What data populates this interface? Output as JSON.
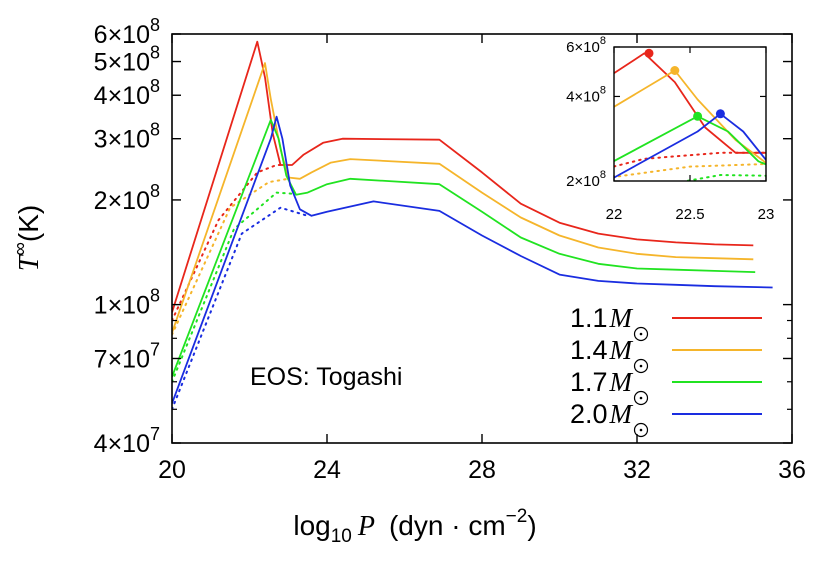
{
  "chart_data": {
    "type": "line",
    "xlabel": {
      "prefix": "log",
      "sub": "10",
      "var": "P",
      "unit": "(dyn · cm",
      "sup": "−2",
      "close": ")"
    },
    "ylabel": {
      "var": "T",
      "sup": "∞",
      "unit": "(K)"
    },
    "annotation": "EOS: Togashi",
    "x_scale": "linear",
    "y_scale": "log",
    "xlim": [
      20,
      36
    ],
    "ylim": [
      40000000,
      600000000
    ],
    "x_ticks": [
      {
        "value": 20,
        "label": "20"
      },
      {
        "value": 24,
        "label": "24"
      },
      {
        "value": 28,
        "label": "28"
      },
      {
        "value": 32,
        "label": "32"
      },
      {
        "value": 36,
        "label": "36"
      }
    ],
    "y_ticks": [
      {
        "value": 40000000,
        "label": "4×10",
        "exp": "7"
      },
      {
        "value": 70000000,
        "label": "7×10",
        "exp": "7"
      },
      {
        "value": 100000000,
        "label": "1×10",
        "exp": "8"
      },
      {
        "value": 200000000,
        "label": "2×10",
        "exp": "8"
      },
      {
        "value": 300000000,
        "label": "3×10",
        "exp": "8"
      },
      {
        "value": 400000000,
        "label": "4×10",
        "exp": "8"
      },
      {
        "value": 500000000,
        "label": "5×10",
        "exp": "8"
      },
      {
        "value": 600000000,
        "label": "6×10",
        "exp": "8"
      }
    ],
    "legend_position": "bottom-right",
    "series": [
      {
        "name": "1.1",
        "unit": "M",
        "color": "#e8261b",
        "solid": [
          [
            20.0,
            95000000
          ],
          [
            22.2,
            570000000
          ],
          [
            22.4,
            450000000
          ],
          [
            22.6,
            310000000
          ],
          [
            22.8,
            252000000
          ],
          [
            23.1,
            252000000
          ],
          [
            23.4,
            270000000
          ],
          [
            23.9,
            292000000
          ],
          [
            24.4,
            300000000
          ],
          [
            26.9,
            298000000
          ],
          [
            28,
            240000000
          ],
          [
            29,
            195000000
          ],
          [
            30,
            172000000
          ],
          [
            31,
            160000000
          ],
          [
            32,
            154000000
          ],
          [
            33,
            151000000
          ],
          [
            34,
            149000000
          ],
          [
            35,
            148000000
          ]
        ],
        "dotted": [
          [
            20.0,
            90000000
          ],
          [
            21.2,
            175000000
          ],
          [
            22.2,
            240000000
          ],
          [
            22.7,
            252000000
          ],
          [
            23.0,
            252000000
          ]
        ],
        "inset_peak": [
          22.23,
          570000000
        ]
      },
      {
        "name": "1.4",
        "unit": "M",
        "color": "#f5b52b",
        "solid": [
          [
            20.0,
            83000000
          ],
          [
            22.4,
            495000000
          ],
          [
            22.55,
            390000000
          ],
          [
            22.8,
            280000000
          ],
          [
            23.0,
            232000000
          ],
          [
            23.3,
            230000000
          ],
          [
            23.6,
            240000000
          ],
          [
            24.1,
            256000000
          ],
          [
            24.6,
            262000000
          ],
          [
            26.9,
            254000000
          ],
          [
            28,
            210000000
          ],
          [
            29,
            178000000
          ],
          [
            30,
            158000000
          ],
          [
            31,
            146000000
          ],
          [
            32,
            140000000
          ],
          [
            33,
            137000000
          ],
          [
            34,
            136000000
          ],
          [
            35,
            135000000
          ]
        ],
        "dotted": [
          [
            20.0,
            82000000
          ],
          [
            21.5,
            190000000
          ],
          [
            22.5,
            225000000
          ],
          [
            23.0,
            230000000
          ]
        ],
        "inset_peak": [
          22.4,
          495000000
        ]
      },
      {
        "name": "1.7",
        "unit": "M",
        "color": "#21e321",
        "solid": [
          [
            20.0,
            62000000
          ],
          [
            22.55,
            340000000
          ],
          [
            22.75,
            300000000
          ],
          [
            22.95,
            235000000
          ],
          [
            23.2,
            207000000
          ],
          [
            23.5,
            210000000
          ],
          [
            24.0,
            222000000
          ],
          [
            24.6,
            230000000
          ],
          [
            26.9,
            222000000
          ],
          [
            28,
            185000000
          ],
          [
            29,
            156000000
          ],
          [
            30,
            140000000
          ],
          [
            31,
            131000000
          ],
          [
            32,
            127000000
          ],
          [
            33,
            126000000
          ],
          [
            34,
            125000000
          ],
          [
            35.05,
            124000000
          ]
        ],
        "dotted": [
          [
            20.0,
            60000000
          ],
          [
            21.6,
            165000000
          ],
          [
            22.7,
            210000000
          ],
          [
            23.2,
            208000000
          ]
        ],
        "inset_peak": [
          22.55,
          340000000
        ]
      },
      {
        "name": "2.0",
        "unit": "M",
        "color": "#1a2de0",
        "solid": [
          [
            20.0,
            52000000
          ],
          [
            22.55,
            300000000
          ],
          [
            22.7,
            347000000
          ],
          [
            22.85,
            300000000
          ],
          [
            23.05,
            220000000
          ],
          [
            23.3,
            188000000
          ],
          [
            23.6,
            180000000
          ],
          [
            24.0,
            185000000
          ],
          [
            25.2,
            198000000
          ],
          [
            26.9,
            186000000
          ],
          [
            28,
            158000000
          ],
          [
            29,
            138000000
          ],
          [
            30,
            122000000
          ],
          [
            31,
            117000000
          ],
          [
            32,
            115000000
          ],
          [
            33,
            114000000
          ],
          [
            34,
            113000000
          ],
          [
            35.5,
            112000000
          ]
        ],
        "dotted": [
          [
            20.0,
            50000000
          ],
          [
            21.8,
            160000000
          ],
          [
            22.8,
            190000000
          ],
          [
            23.5,
            180000000
          ]
        ],
        "inset_peak": [
          22.7,
          347000000
        ]
      }
    ],
    "inset": {
      "xlim": [
        22,
        23
      ],
      "ylim": [
        200000000,
        600000000
      ],
      "x_ticks": [
        {
          "value": 22,
          "label": "22"
        },
        {
          "value": 22.5,
          "label": "22.5"
        },
        {
          "value": 23,
          "label": "23"
        }
      ],
      "y_ticks": [
        {
          "value": 200000000,
          "label": "2×10",
          "exp": "8"
        },
        {
          "value": 400000000,
          "label": "4×10",
          "exp": "8"
        },
        {
          "value": 600000000,
          "label": "6×10",
          "exp": "8"
        }
      ]
    }
  }
}
